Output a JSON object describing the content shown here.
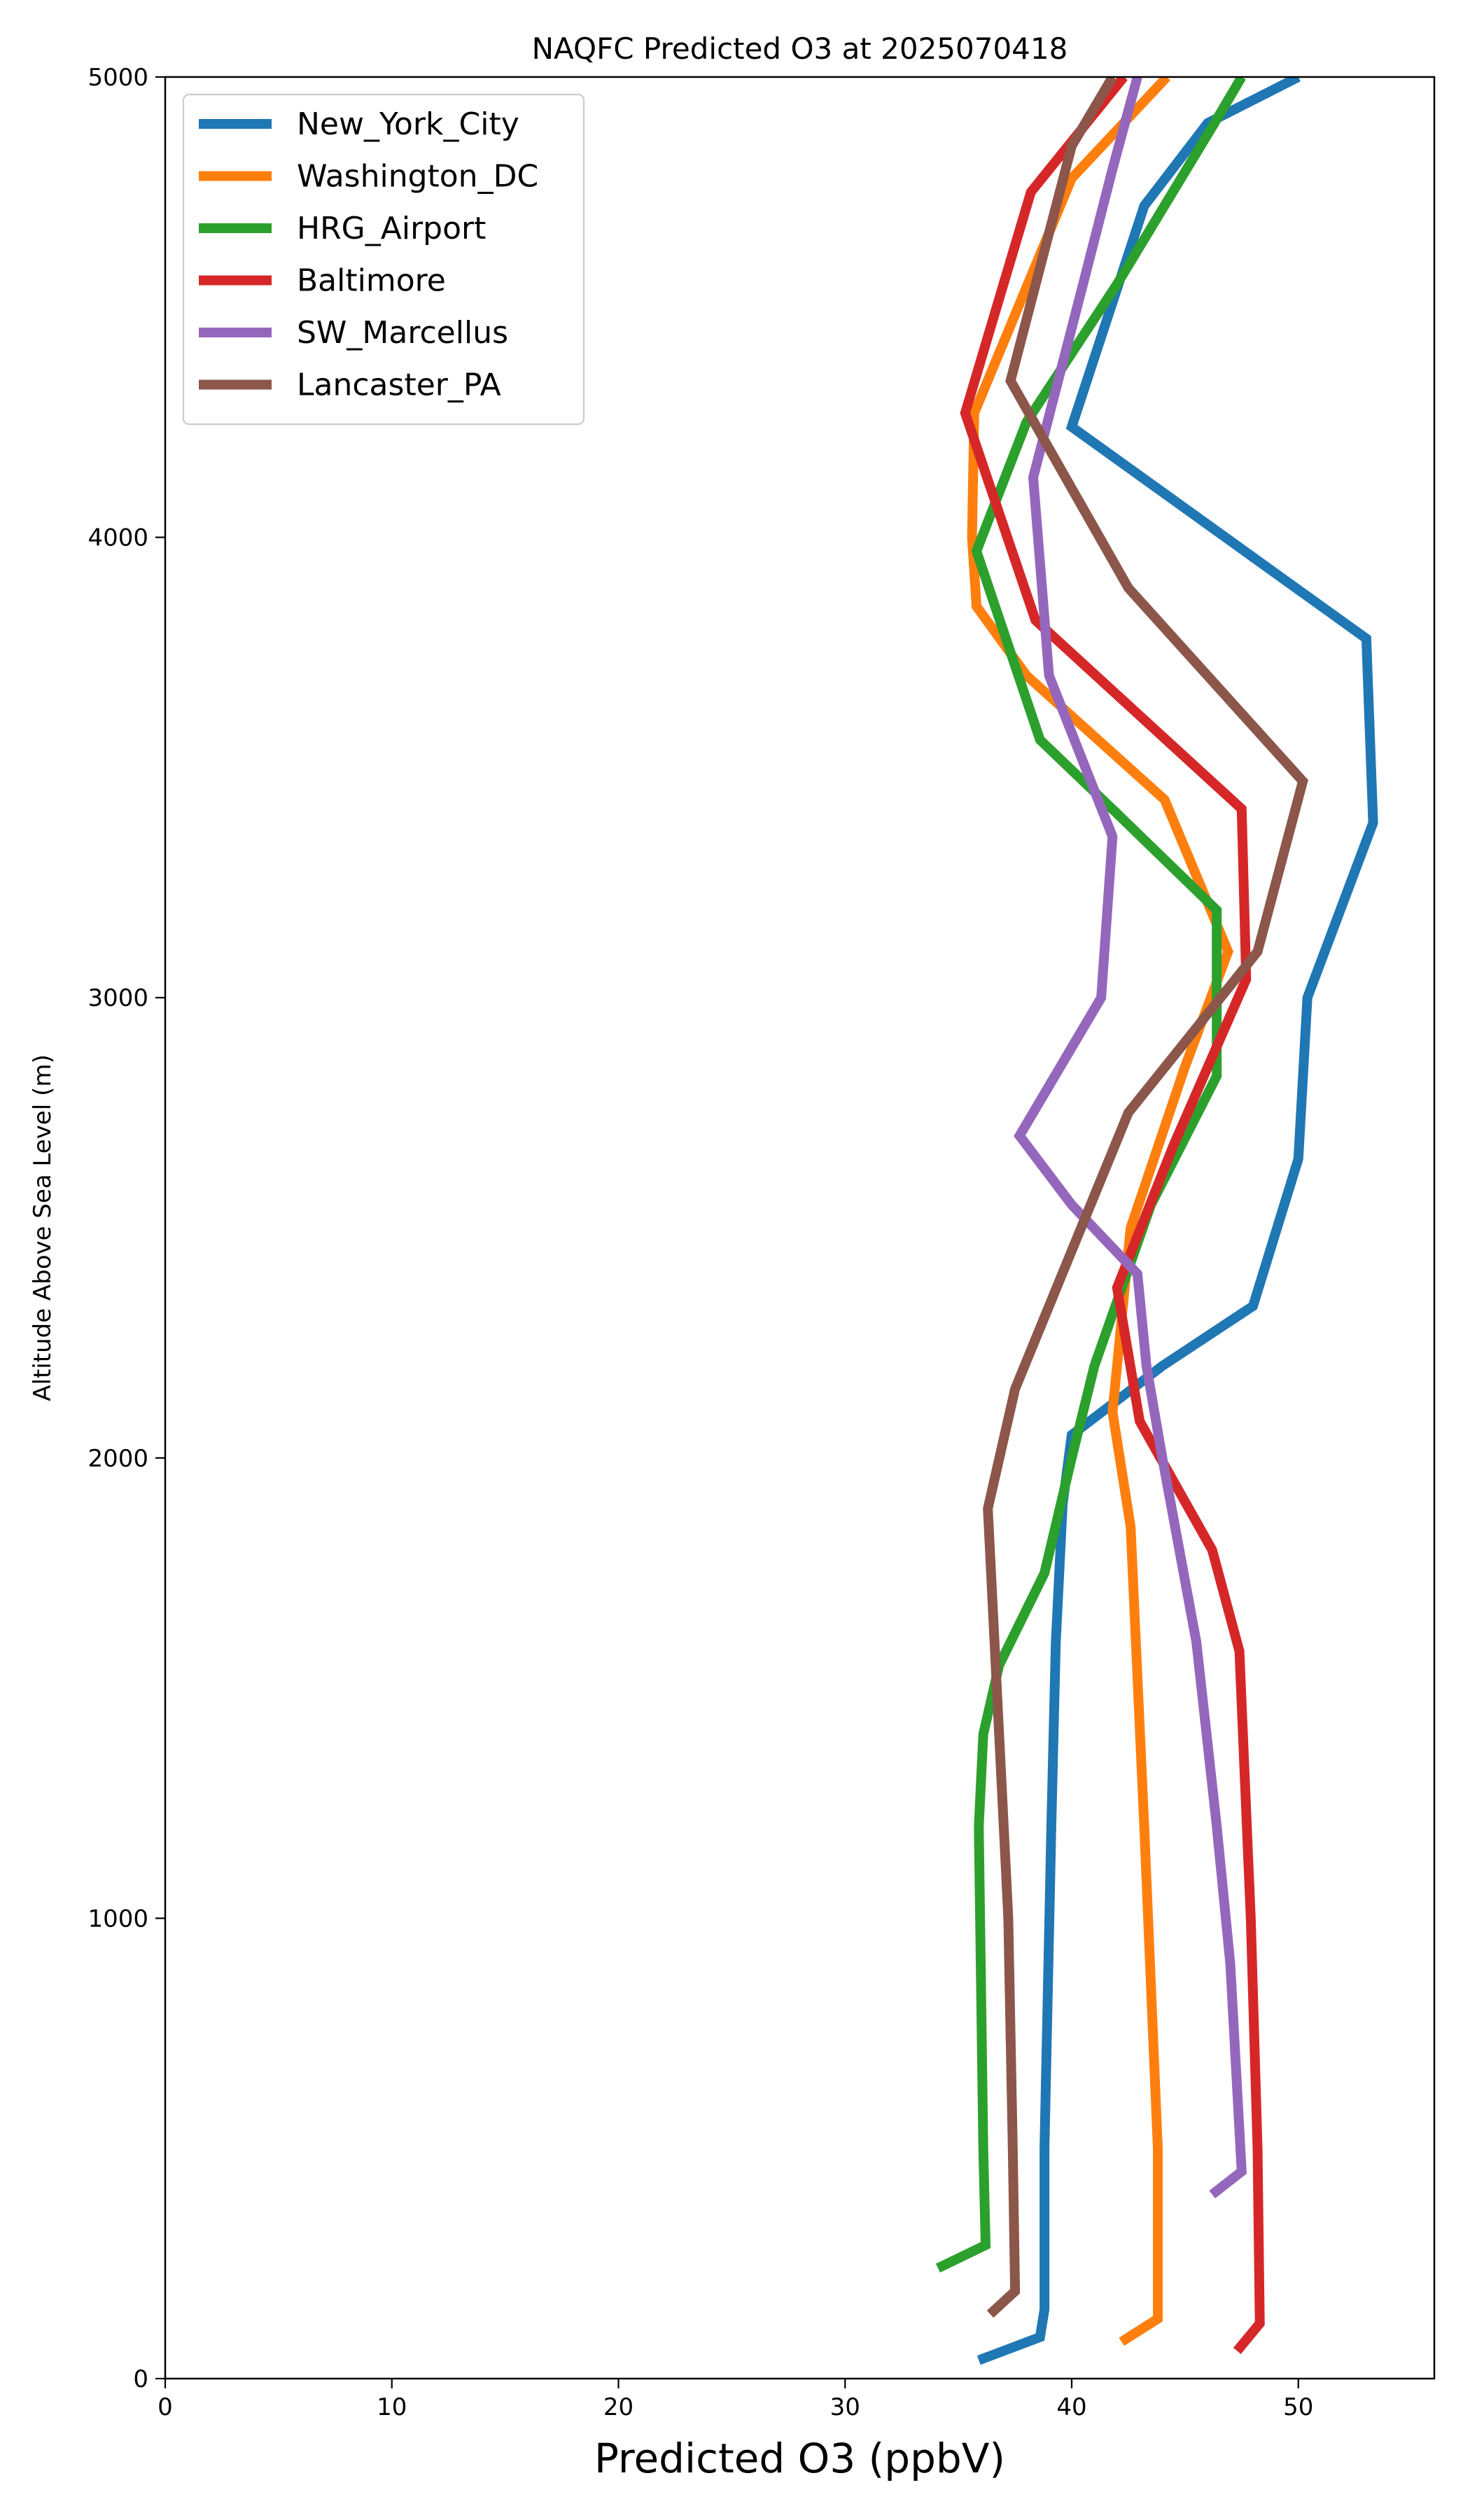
{
  "chart_data": {
    "type": "line",
    "title": "NAQFC Predicted O3 at 2025070418",
    "xlabel": "Predicted O3 (ppbV)",
    "ylabel": "Altitude Above Sea Level (m)",
    "xlim": [
      0,
      56
    ],
    "ylim": [
      0,
      5000
    ],
    "xticks": [
      0,
      10,
      20,
      30,
      40,
      50
    ],
    "yticks": [
      0,
      1000,
      2000,
      3000,
      4000,
      5000
    ],
    "grid": false,
    "legend_position": "top-left",
    "series": [
      {
        "name": "New_York_City",
        "color": "#1f77b4",
        "points": [
          [
            35.9,
            40
          ],
          [
            38.6,
            90
          ],
          [
            38.8,
            150
          ],
          [
            38.8,
            500
          ],
          [
            39.1,
            1200
          ],
          [
            39.3,
            1600
          ],
          [
            39.6,
            1900
          ],
          [
            40.0,
            2050
          ],
          [
            44.0,
            2200
          ],
          [
            48.0,
            2330
          ],
          [
            50.0,
            2650
          ],
          [
            50.4,
            3000
          ],
          [
            53.3,
            3380
          ],
          [
            53.0,
            3780
          ],
          [
            40.0,
            4240
          ],
          [
            43.2,
            4720
          ],
          [
            46.0,
            4900
          ],
          [
            50.0,
            5000
          ]
        ]
      },
      {
        "name": "Washington_DC",
        "color": "#ff7f0e",
        "points": [
          [
            42.2,
            80
          ],
          [
            43.8,
            130
          ],
          [
            43.8,
            500
          ],
          [
            43.2,
            1200
          ],
          [
            42.6,
            1850
          ],
          [
            41.8,
            2100
          ],
          [
            42.6,
            2500
          ],
          [
            45.0,
            2850
          ],
          [
            46.9,
            3100
          ],
          [
            44.1,
            3430
          ],
          [
            38.0,
            3700
          ],
          [
            35.8,
            3850
          ],
          [
            35.6,
            4000
          ],
          [
            35.7,
            4270
          ],
          [
            40.0,
            4780
          ],
          [
            44.2,
            5000
          ]
        ]
      },
      {
        "name": "HRG_Airport",
        "color": "#2ca02c",
        "points": [
          [
            34.1,
            240
          ],
          [
            36.2,
            290
          ],
          [
            36.1,
            500
          ],
          [
            35.9,
            1200
          ],
          [
            36.1,
            1400
          ],
          [
            36.8,
            1550
          ],
          [
            38.8,
            1750
          ],
          [
            40.0,
            2000
          ],
          [
            41.0,
            2200
          ],
          [
            43.5,
            2550
          ],
          [
            46.4,
            2830
          ],
          [
            46.4,
            3190
          ],
          [
            42.0,
            3400
          ],
          [
            38.6,
            3560
          ],
          [
            35.8,
            3970
          ],
          [
            38.0,
            4250
          ],
          [
            42.0,
            4550
          ],
          [
            46.3,
            4900
          ],
          [
            47.5,
            5000
          ]
        ]
      },
      {
        "name": "Baltimore",
        "color": "#d62728",
        "points": [
          [
            47.3,
            60
          ],
          [
            48.3,
            120
          ],
          [
            48.2,
            500
          ],
          [
            47.9,
            1000
          ],
          [
            47.6,
            1350
          ],
          [
            47.4,
            1580
          ],
          [
            46.2,
            1800
          ],
          [
            43.0,
            2080
          ],
          [
            42.0,
            2370
          ],
          [
            44.5,
            2680
          ],
          [
            47.7,
            3040
          ],
          [
            47.5,
            3410
          ],
          [
            38.4,
            3820
          ],
          [
            35.3,
            4270
          ],
          [
            38.2,
            4750
          ],
          [
            42.3,
            5000
          ]
        ]
      },
      {
        "name": "SW_Marcellus",
        "color": "#9467bd",
        "points": [
          [
            46.2,
            400
          ],
          [
            47.5,
            450
          ],
          [
            47.0,
            900
          ],
          [
            46.4,
            1200
          ],
          [
            45.5,
            1600
          ],
          [
            44.0,
            2000
          ],
          [
            43.3,
            2200
          ],
          [
            42.9,
            2400
          ],
          [
            40.0,
            2550
          ],
          [
            37.7,
            2700
          ],
          [
            41.3,
            3000
          ],
          [
            41.8,
            3350
          ],
          [
            39.0,
            3700
          ],
          [
            38.3,
            4130
          ],
          [
            40.5,
            4550
          ],
          [
            41.8,
            4800
          ],
          [
            42.9,
            5000
          ]
        ]
      },
      {
        "name": "Lancaster_PA",
        "color": "#8c564b",
        "points": [
          [
            36.4,
            140
          ],
          [
            37.5,
            190
          ],
          [
            37.4,
            500
          ],
          [
            37.2,
            1000
          ],
          [
            36.9,
            1300
          ],
          [
            36.3,
            1890
          ],
          [
            37.5,
            2150
          ],
          [
            40.0,
            2450
          ],
          [
            42.5,
            2750
          ],
          [
            48.2,
            3100
          ],
          [
            50.2,
            3470
          ],
          [
            42.5,
            3890
          ],
          [
            37.3,
            4340
          ],
          [
            40.0,
            4850
          ],
          [
            41.8,
            5000
          ]
        ]
      }
    ]
  }
}
